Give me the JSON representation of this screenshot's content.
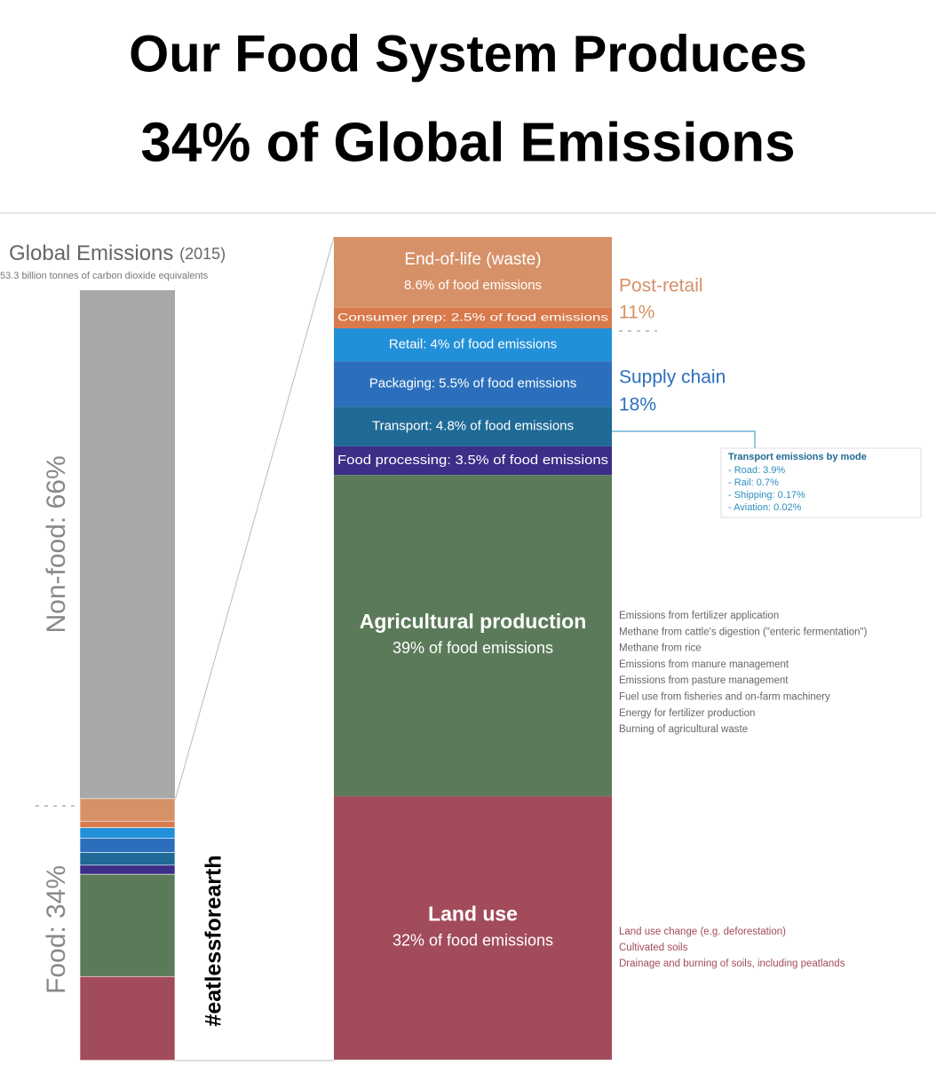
{
  "title": {
    "lines": [
      "Our Food System Produces",
      "34% of Global Emissions"
    ]
  },
  "global": {
    "title": "Global Emissions",
    "year": "(2015)",
    "subtitle": "53.3 billion tonnes of carbon dioxide equivalents",
    "segments": [
      {
        "label": "Non-food: 66%",
        "value": 66,
        "color": "#a8a8a8"
      },
      {
        "label": "Food: 34%",
        "value": 34
      }
    ]
  },
  "food_segments": [
    {
      "name": "End-of-life (waste)",
      "label": "8.6% of food emissions",
      "value": 8.6,
      "color": "#d69168"
    },
    {
      "label": "Consumer prep: 2.5% of food emissions",
      "value": 2.5,
      "color": "#d97a4c"
    },
    {
      "label": "Retail: 4% of food emissions",
      "value": 4,
      "color": "#2290d8"
    },
    {
      "label": "Packaging: 5.5% of food emissions",
      "value": 5.5,
      "color": "#2b6fbc"
    },
    {
      "label": "Transport: 4.8% of food emissions",
      "value": 4.8,
      "color": "#1f6a96"
    },
    {
      "label": "Food processing: 3.5% of food emissions",
      "value": 3.5,
      "color": "#3b2f88"
    },
    {
      "name": "Agricultural production",
      "label": "39% of food emissions",
      "value": 39,
      "color": "#5b7a59"
    },
    {
      "name": "Land use",
      "label": "32% of food emissions",
      "value": 32,
      "color": "#a24b5b"
    }
  ],
  "groups": [
    {
      "name": "Post-retail",
      "share": "11%",
      "color": "#d69168"
    },
    {
      "name": "Supply chain",
      "share": "18%",
      "color": "#2b6fbc"
    }
  ],
  "transport_modes": {
    "title": "Transport emissions by mode",
    "items": [
      "- Road: 3.9%",
      "- Rail: 0.7%",
      "- Shipping: 0.17%",
      "- Aviation: 0.02%"
    ]
  },
  "agri_sources": [
    "Emissions from fertilizer application",
    "Methane from cattle's digestion (\"enteric fermentation\")",
    "Methane from rice",
    "Emissions from manure management",
    "Emissions from pasture management",
    "Fuel use from fisheries and on-farm machinery",
    "Energy for fertilizer production",
    "Burning of agricultural waste"
  ],
  "land_sources": [
    "Land use change (e.g. deforestation)",
    "Cultivated soils",
    "Drainage and burning of soils, including peatlands"
  ],
  "hashtag": "#eatlessforearth"
}
